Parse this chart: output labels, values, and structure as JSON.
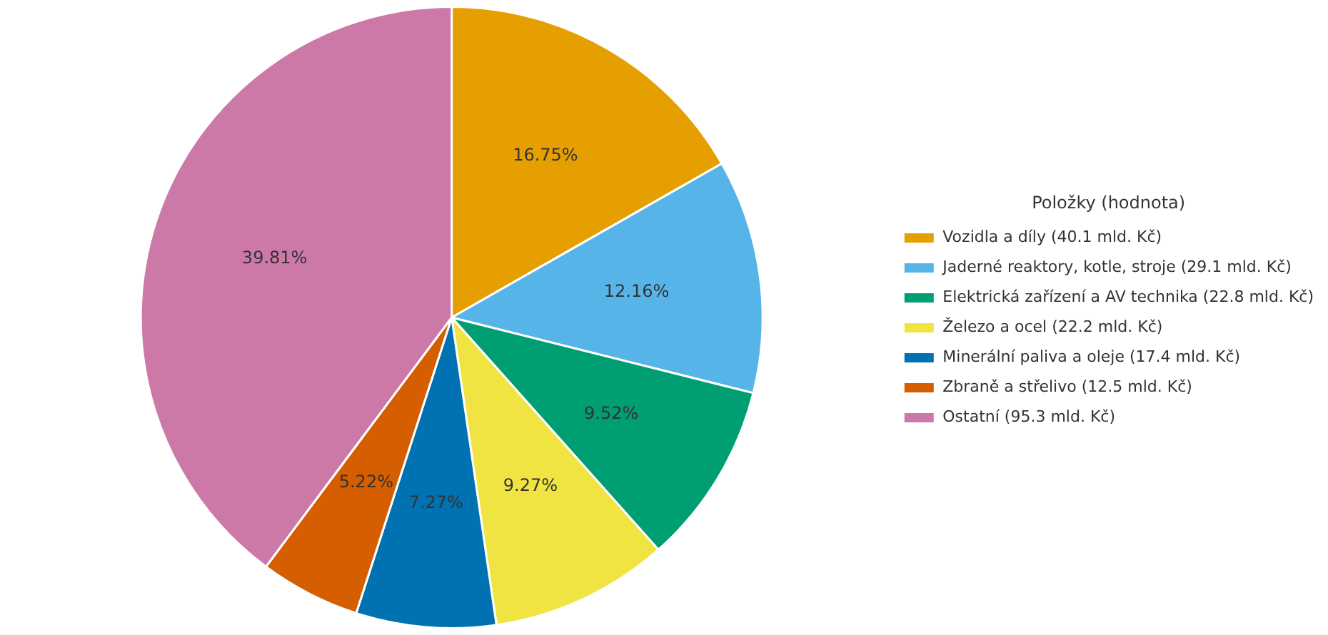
{
  "chart_data": {
    "type": "pie",
    "legend_title": "Položky (hodnota)",
    "legend": "right",
    "categories": [
      "Vozidla a díly (40.1 mld. Kč)",
      "Jaderné reaktory, kotle, stroje (29.1 mld. Kč)",
      "Elektrická zařízení a AV technika (22.8 mld. Kč)",
      "Železo a ocel (22.2 mld. Kč)",
      "Minerální paliva a oleje (17.4 mld. Kč)",
      "Zbraně a střelivo (12.5 mld. Kč)",
      "Ostatní (95.3 mld. Kč)"
    ],
    "values": [
      16.75,
      12.16,
      9.52,
      9.27,
      7.27,
      5.22,
      39.81
    ],
    "value_labels": [
      "16.75%",
      "12.16%",
      "9.52%",
      "9.27%",
      "7.27%",
      "5.22%",
      "39.81%"
    ],
    "colors": [
      "#e69f00",
      "#56b4e9",
      "#009e73",
      "#f0e442",
      "#0072b2",
      "#d55e00",
      "#cc79a7"
    ]
  }
}
